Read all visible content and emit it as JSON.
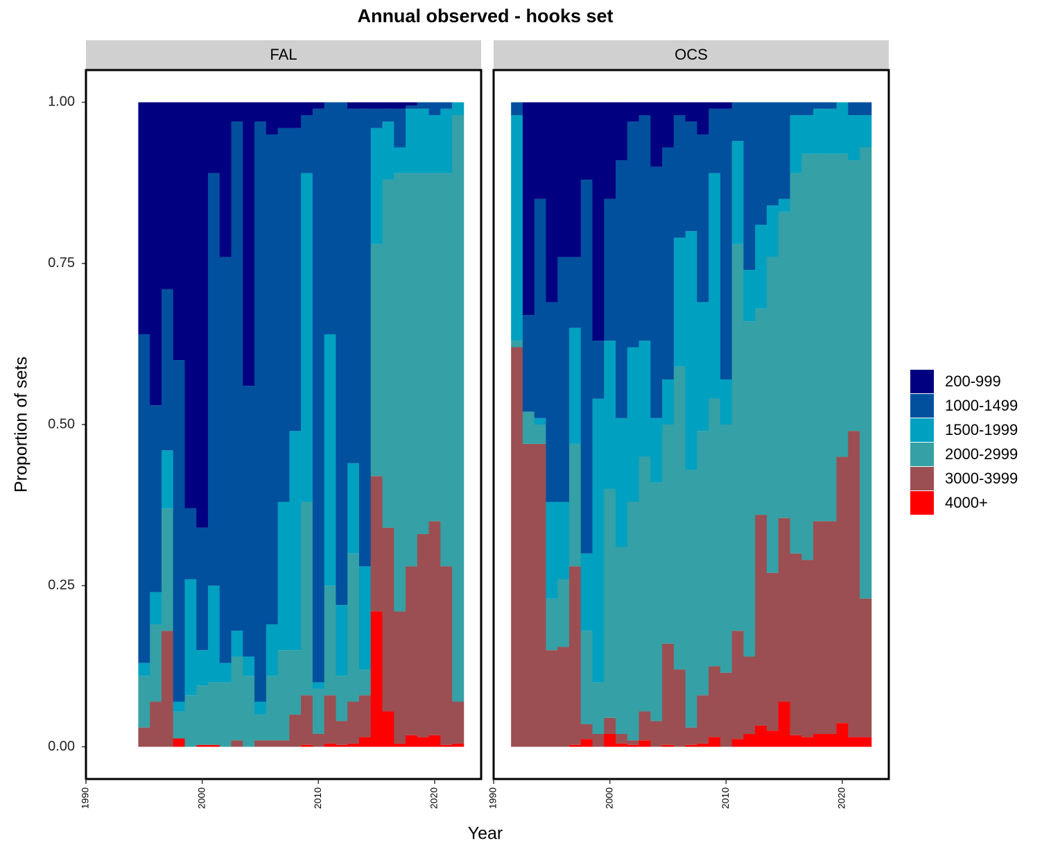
{
  "title": "Annual observed - hooks set",
  "x_label": "Year",
  "y_label": "Proportion of sets",
  "chart_data": [
    {
      "type": "bar",
      "stacked": true,
      "title": "FAL",
      "x": [
        1995,
        1996,
        1997,
        1998,
        1999,
        2000,
        2001,
        2002,
        2003,
        2004,
        2005,
        2006,
        2007,
        2008,
        2009,
        2010,
        2011,
        2012,
        2013,
        2014,
        2015,
        2016,
        2017,
        2018,
        2019,
        2020,
        2021,
        2022
      ],
      "series": [
        {
          "name": "200-999",
          "color": "#000080",
          "values": [
            0.36,
            0.47,
            0.29,
            0.4,
            0.63,
            0.66,
            0.11,
            0.24,
            0.03,
            0.44,
            0.03,
            0.05,
            0.04,
            0.04,
            0.02,
            0.01,
            0,
            0,
            0.01,
            0.01,
            0.01,
            0.01,
            0.01,
            0.005,
            0,
            0,
            0,
            0
          ]
        },
        {
          "name": "1000-1499",
          "color": "#00509e",
          "values": [
            0.51,
            0.29,
            0.25,
            0.53,
            0.11,
            0.19,
            0.64,
            0.63,
            0.79,
            0.42,
            0.9,
            0.76,
            0.58,
            0.47,
            0.09,
            0.89,
            0.36,
            0.78,
            0.55,
            0.71,
            0.03,
            0.02,
            0.06,
            0.005,
            0.01,
            0.02,
            0.01,
            0
          ]
        },
        {
          "name": "1500-1999",
          "color": "#00a0c0",
          "values": [
            0.02,
            0.05,
            0.09,
            0.015,
            0.18,
            0.055,
            0.15,
            0.03,
            0.04,
            0.03,
            0.02,
            0.08,
            0.23,
            0.34,
            0.51,
            0.01,
            0.39,
            0.11,
            0.14,
            0.16,
            0.18,
            0.09,
            0.04,
            0.1,
            0.1,
            0.09,
            0.1,
            0.02
          ]
        },
        {
          "name": "2000-2999",
          "color": "#35a0a5",
          "values": [
            0.08,
            0.12,
            0.19,
            0.042,
            0.08,
            0.092,
            0.097,
            0.1,
            0.13,
            0.11,
            0.04,
            0.1,
            0.14,
            0.1,
            0.3,
            0.07,
            0.17,
            0.07,
            0.23,
            0.04,
            0.36,
            0.54,
            0.68,
            0.61,
            0.56,
            0.54,
            0.61,
            0.91
          ]
        },
        {
          "name": "3000-3999",
          "color": "#9b4f52",
          "values": [
            0.03,
            0.07,
            0.18,
            0,
            0,
            0,
            0,
            0,
            0.01,
            0,
            0.01,
            0.01,
            0.01,
            0.05,
            0.077,
            0.02,
            0.075,
            0.037,
            0.065,
            0.065,
            0.21,
            0.285,
            0.205,
            0.262,
            0.315,
            0.332,
            0.277,
            0.065
          ]
        },
        {
          "name": "4000+",
          "color": "#ff0000",
          "values": [
            0,
            0,
            0,
            0.013,
            0,
            0.003,
            0.003,
            0,
            0,
            0,
            0,
            0,
            0,
            0,
            0.003,
            0,
            0.005,
            0.003,
            0.005,
            0.015,
            0.21,
            0.055,
            0.005,
            0.018,
            0.015,
            0.018,
            0.003,
            0.005
          ]
        }
      ],
      "xlim": [
        1990,
        2024
      ],
      "xticks": [
        1990,
        2000,
        2010,
        2020
      ],
      "ylim": [
        -0.05,
        1.05
      ],
      "yticks": [
        {
          "value": 0,
          "label": "0.00"
        },
        {
          "value": 0.25,
          "label": "0.25"
        },
        {
          "value": 0.5,
          "label": "0.50"
        },
        {
          "value": 0.75,
          "label": "0.75"
        },
        {
          "value": 1,
          "label": "1.00"
        }
      ]
    },
    {
      "type": "bar",
      "stacked": true,
      "title": "OCS",
      "x": [
        1992,
        1993,
        1994,
        1995,
        1996,
        1997,
        1998,
        1999,
        2000,
        2001,
        2002,
        2003,
        2004,
        2005,
        2006,
        2007,
        2008,
        2009,
        2010,
        2011,
        2012,
        2013,
        2014,
        2015,
        2016,
        2017,
        2018,
        2019,
        2020,
        2021,
        2022
      ],
      "series": [
        {
          "name": "200-999",
          "color": "#000080",
          "values": [
            0,
            0.33,
            0.15,
            0.31,
            0.24,
            0.24,
            0.12,
            0.37,
            0.15,
            0.09,
            0.03,
            0.02,
            0.1,
            0.07,
            0.02,
            0.03,
            0.05,
            0.01,
            0.01,
            0,
            0,
            0,
            0,
            0,
            0,
            0,
            0,
            0,
            0,
            0,
            0
          ]
        },
        {
          "name": "1000-1499",
          "color": "#00509e",
          "values": [
            0.02,
            0.15,
            0.34,
            0.31,
            0.38,
            0.11,
            0.58,
            0.09,
            0.22,
            0.4,
            0.35,
            0.35,
            0.39,
            0.36,
            0.19,
            0.17,
            0.26,
            0.1,
            0.42,
            0.06,
            0.26,
            0.19,
            0.16,
            0.15,
            0.02,
            0.02,
            0.01,
            0.01,
            0,
            0.02,
            0.02
          ]
        },
        {
          "name": "1500-1999",
          "color": "#00a0c0",
          "values": [
            0.35,
            0,
            0.01,
            0.15,
            0.12,
            0.18,
            0.12,
            0.44,
            0.23,
            0.2,
            0.24,
            0.18,
            0.1,
            0.07,
            0.2,
            0.37,
            0.2,
            0.35,
            0.07,
            0.16,
            0.08,
            0.13,
            0.08,
            0.02,
            0.09,
            0.06,
            0.07,
            0.07,
            0.08,
            0.07,
            0.05
          ]
        },
        {
          "name": "2000-2999",
          "color": "#35a0a5",
          "values": [
            0.01,
            0.05,
            0.03,
            0.08,
            0.105,
            0.19,
            0.145,
            0.08,
            0.355,
            0.29,
            0.37,
            0.395,
            0.37,
            0.34,
            0.47,
            0.4,
            0.41,
            0.415,
            0.385,
            0.6,
            0.52,
            0.32,
            0.49,
            0.475,
            0.59,
            0.63,
            0.57,
            0.57,
            0.47,
            0.42,
            0.7
          ]
        },
        {
          "name": "3000-3999",
          "color": "#9b4f52",
          "values": [
            0.62,
            0.47,
            0.47,
            0.15,
            0.155,
            0.277,
            0.023,
            0.02,
            0.025,
            0.015,
            0.007,
            0.045,
            0.04,
            0.157,
            0.12,
            0.027,
            0.075,
            0.11,
            0.115,
            0.168,
            0.12,
            0.327,
            0.245,
            0.285,
            0.282,
            0.275,
            0.33,
            0.33,
            0.413,
            0.475,
            0.215
          ]
        },
        {
          "name": "4000+",
          "color": "#ff0000",
          "values": [
            0,
            0,
            0,
            0,
            0,
            0.003,
            0.012,
            0,
            0.02,
            0.005,
            0.003,
            0.01,
            0,
            0.003,
            0,
            0.003,
            0.005,
            0.015,
            0,
            0.012,
            0.02,
            0.033,
            0.025,
            0.07,
            0.018,
            0.015,
            0.02,
            0.02,
            0.037,
            0.015,
            0.015
          ]
        }
      ],
      "xlim": [
        1990,
        2024
      ],
      "xticks": [
        1990,
        2000,
        2010,
        2020
      ],
      "ylim": [
        -0.05,
        1.05
      ],
      "yticks": [
        {
          "value": 0,
          "label": "0.00"
        },
        {
          "value": 0.25,
          "label": "0.25"
        },
        {
          "value": 0.5,
          "label": "0.50"
        },
        {
          "value": 0.75,
          "label": "0.75"
        },
        {
          "value": 1,
          "label": "1.00"
        }
      ]
    }
  ]
}
